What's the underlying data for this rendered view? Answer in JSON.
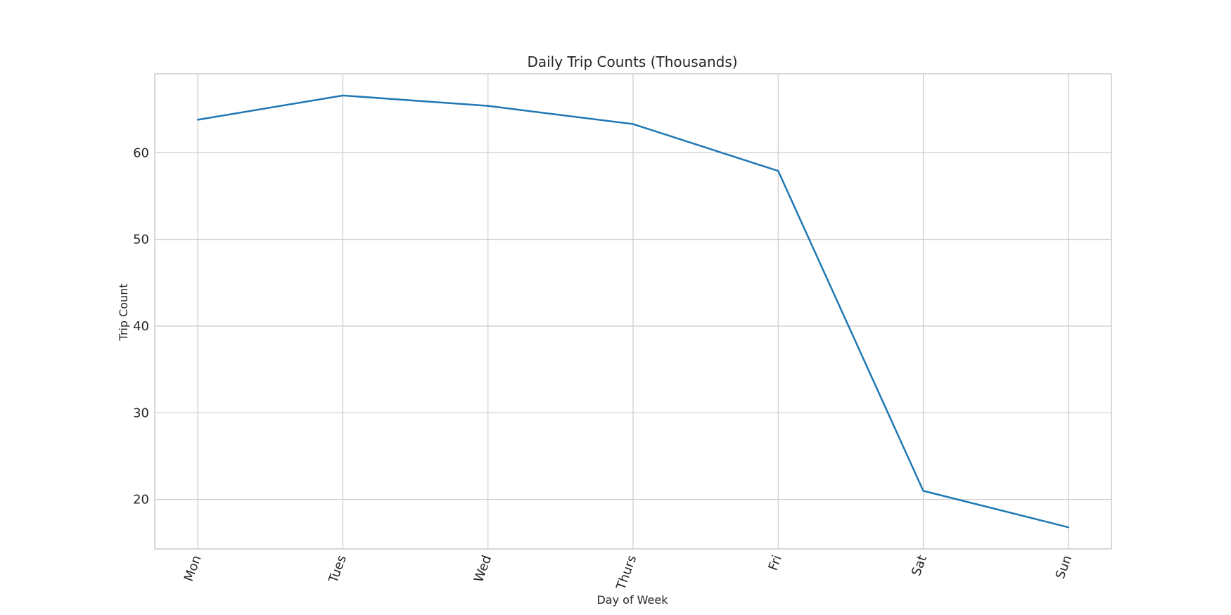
{
  "chart_data": {
    "type": "line",
    "title": "Daily Trip Counts (Thousands)",
    "xlabel": "Day of Week",
    "ylabel": "Trip Count",
    "categories": [
      "Mon",
      "Tues",
      "Wed",
      "Thurs",
      "Fri",
      "Sat",
      "Sun"
    ],
    "series": [
      {
        "values": [
          63.8,
          66.6,
          65.4,
          63.3,
          57.9,
          21.0,
          16.8
        ],
        "color": "#1f77b4"
      }
    ],
    "ylim": [
      14.3,
      69.1
    ],
    "yticks": [
      "20",
      "30",
      "40",
      "50",
      "60"
    ],
    "grid": true,
    "x_tick_rotation_deg": -70
  }
}
